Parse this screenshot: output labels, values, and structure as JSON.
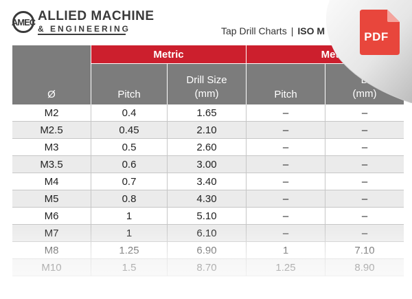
{
  "brand": {
    "logo_mark": "AMEC",
    "name_line1": "ALLIED MACHINE",
    "name_line2": "& ENGINEERING"
  },
  "header": {
    "title": "Tap Drill Charts",
    "separator": "|",
    "subtitle": "ISO M"
  },
  "pdf_badge": {
    "label": "PDF",
    "icon": "pdf-file-icon",
    "color": "#e8463c"
  },
  "colors": {
    "accent": "#cc1f2d",
    "header_grey": "#7c7c7c",
    "row_alt": "#ebebeb"
  },
  "table": {
    "diameter_header": "Ø",
    "groups": [
      {
        "label": "Metric"
      },
      {
        "label": "Metric Fi"
      }
    ],
    "subheaders": {
      "pitch": "Pitch",
      "drill_size_line1": "Drill Size",
      "drill_size_line2": "(mm)",
      "pitch2": "Pitch",
      "drill_size2_line1": "D",
      "drill_size2_line2": "(mm)"
    },
    "rows": [
      [
        "M2",
        "0.4",
        "1.65",
        "–",
        "–"
      ],
      [
        "M2.5",
        "0.45",
        "2.10",
        "–",
        "–"
      ],
      [
        "M3",
        "0.5",
        "2.60",
        "–",
        "–"
      ],
      [
        "M3.5",
        "0.6",
        "3.00",
        "–",
        "–"
      ],
      [
        "M4",
        "0.7",
        "3.40",
        "–",
        "–"
      ],
      [
        "M5",
        "0.8",
        "4.30",
        "–",
        "–"
      ],
      [
        "M6",
        "1",
        "5.10",
        "–",
        "–"
      ],
      [
        "M7",
        "1",
        "6.10",
        "–",
        "–"
      ],
      [
        "M8",
        "1.25",
        "6.90",
        "1",
        "7.10"
      ],
      [
        "M10",
        "1.5",
        "8.70",
        "1.25",
        "8.90"
      ]
    ]
  }
}
